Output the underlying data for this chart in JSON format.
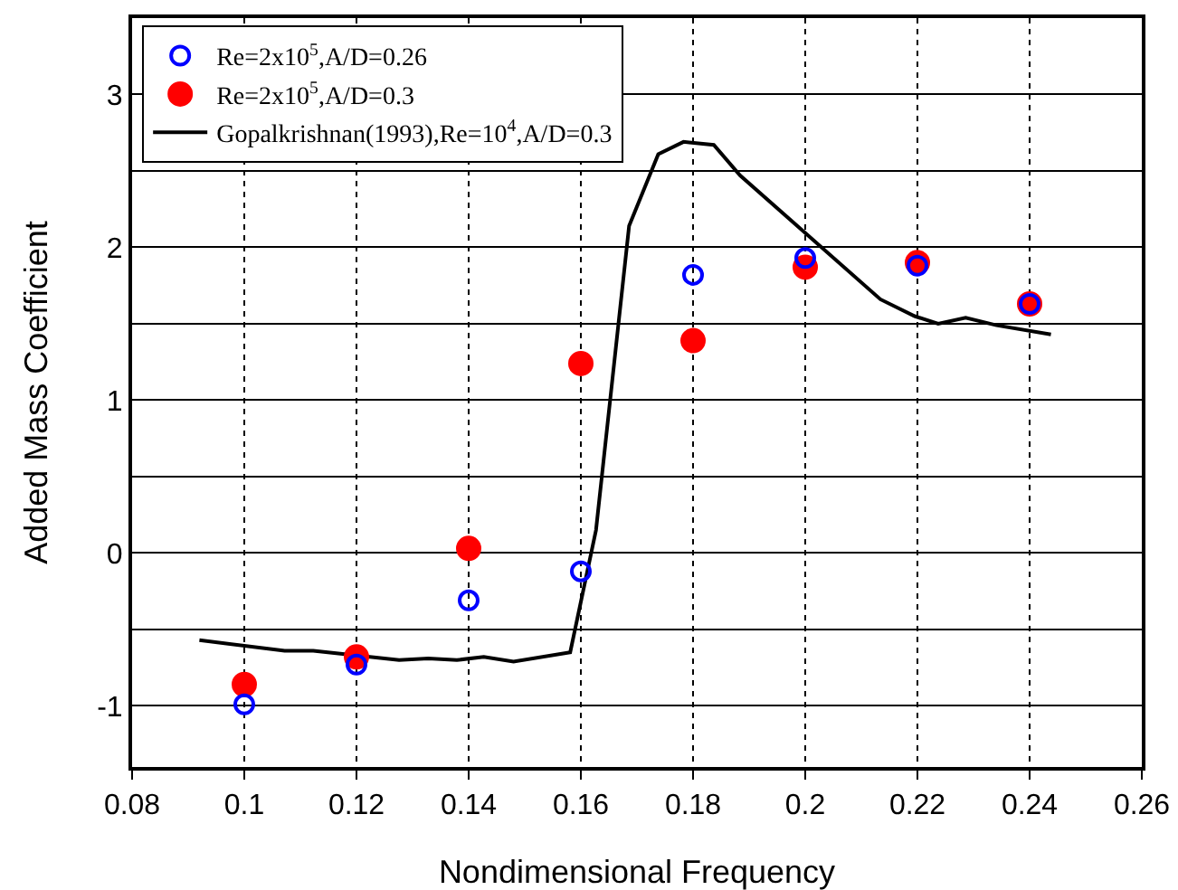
{
  "chart_data": {
    "type": "scatter",
    "xlabel": "Nondimensional Frequency",
    "ylabel": "Added Mass Coefficient",
    "xlim": [
      0.08,
      0.26
    ],
    "xticks": [
      0.08,
      0.1,
      0.12,
      0.14,
      0.16,
      0.18,
      0.2,
      0.22,
      0.24,
      0.26
    ],
    "ylim": [
      -1.4,
      3.5
    ],
    "yticks": [
      {
        "value": -1,
        "label": "-1"
      },
      {
        "value": -0.5,
        "label": null
      },
      0,
      {
        "value": 0.5,
        "label": null
      },
      1,
      {
        "value": 1.5,
        "label": null
      },
      2,
      {
        "value": 2.5,
        "label": null
      },
      3
    ],
    "grid": true,
    "legend": "top left",
    "marker": "circle",
    "series": [
      {
        "name": "Re=2x10$^{5}$,A/D=0.26",
        "color": "#0000ff",
        "x": [
          0.1,
          0.12,
          0.14,
          0.16,
          0.18,
          0.2,
          0.22,
          0.24
        ],
        "values": [
          -0.99,
          -0.73,
          -0.31,
          -0.12,
          1.82,
          1.93,
          1.88,
          1.63
        ]
      },
      {
        "name": "Re=2x10$^{5}$,A/D=0.3",
        "color": "#ff0000",
        "x": [
          0.1,
          0.12,
          0.14,
          0.16,
          0.18,
          0.2,
          0.22,
          0.24
        ],
        "values": [
          -0.86,
          -0.68,
          0.03,
          1.24,
          1.39,
          1.87,
          1.9,
          1.63
        ]
      },
      {
        "name": "Gopalkrishnan(1993),Re=10$^{4}$,A/D=0.3",
        "type": "line",
        "marker": "none",
        "line_style": "solid",
        "color": "#000000",
        "x": [
          0.092,
          0.1072,
          0.1123,
          0.1276,
          0.1328,
          0.1379,
          0.1427,
          0.148,
          0.1581,
          0.1627,
          0.1686,
          0.1738,
          0.1783,
          0.1837,
          0.1884,
          0.2134,
          0.2195,
          0.2237,
          0.2286,
          0.2341,
          0.2438
        ],
        "values": [
          -0.57,
          -0.64,
          -0.64,
          -0.7,
          -0.69,
          -0.7,
          -0.68,
          -0.71,
          -0.65,
          0.15,
          2.14,
          2.61,
          2.69,
          2.67,
          2.47,
          1.66,
          1.55,
          1.5,
          1.54,
          1.49,
          1.43
        ]
      }
    ]
  }
}
